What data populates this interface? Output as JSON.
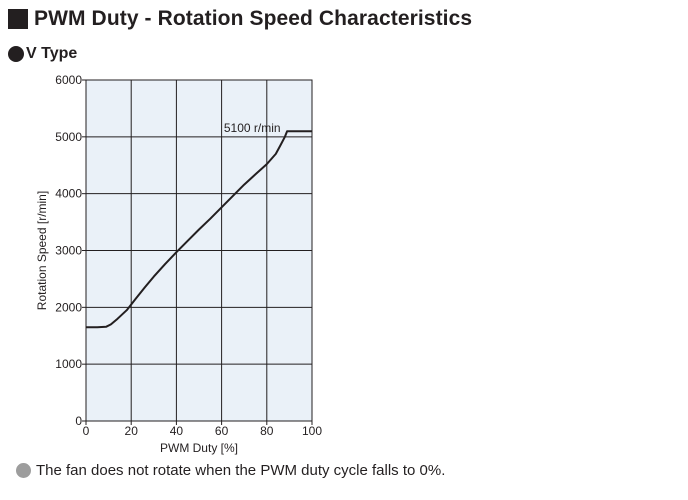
{
  "heading": "PWM Duty - Rotation Speed Characteristics",
  "subheading": "V Type",
  "note": "The fan does not rotate when the PWM duty cycle falls to 0%.",
  "colors": {
    "plot_background": "#eaf1f8",
    "line": "#231f20",
    "grid": "#231f20",
    "note_bullet": "#9d9d9d"
  },
  "chart_data": {
    "type": "line",
    "title": "",
    "xlabel": "PWM Duty [%]",
    "ylabel": "Rotation Speed [r/min]",
    "xlim": [
      0,
      100
    ],
    "ylim": [
      0,
      6000
    ],
    "xticks": [
      0,
      20,
      40,
      60,
      80,
      100
    ],
    "yticks": [
      0,
      1000,
      2000,
      3000,
      4000,
      5000,
      6000
    ],
    "grid": true,
    "series": [
      {
        "x": [
          0,
          5,
          9,
          11,
          14,
          18,
          22,
          26,
          30,
          35,
          40,
          45,
          50,
          55,
          60,
          65,
          70,
          75,
          80,
          84,
          86,
          88,
          89,
          90,
          95,
          100
        ],
        "y": [
          1650,
          1650,
          1660,
          1700,
          1800,
          1950,
          2150,
          2350,
          2540,
          2760,
          2970,
          3170,
          3370,
          3560,
          3760,
          3960,
          4160,
          4340,
          4520,
          4700,
          4850,
          5000,
          5100,
          5100,
          5100,
          5100
        ]
      }
    ],
    "annotations": [
      {
        "text": "5100 r/min",
        "x": 61,
        "y": 5100
      }
    ]
  }
}
